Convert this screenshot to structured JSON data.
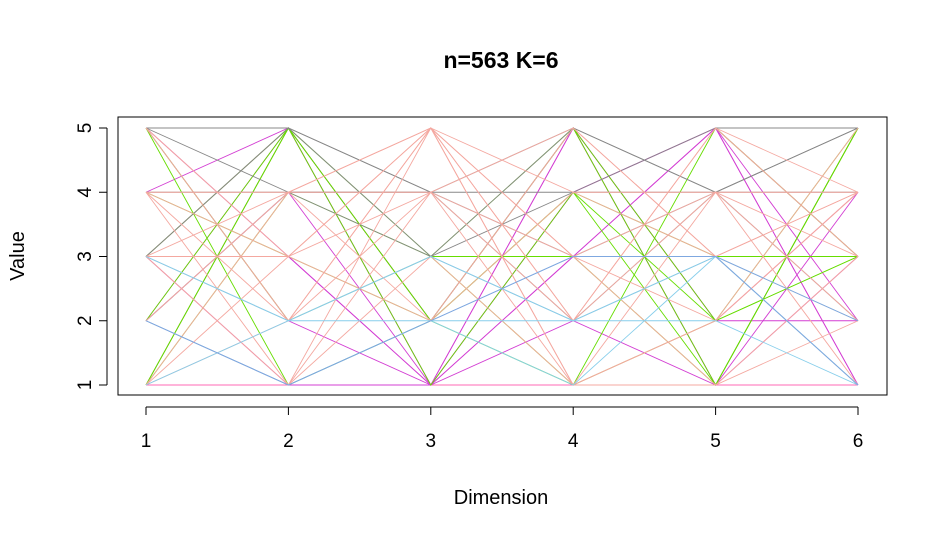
{
  "chart_data": {
    "type": "line",
    "title": "n=563 K=6",
    "xlabel": "Dimension",
    "ylabel": "Value",
    "x": [
      1,
      2,
      3,
      4,
      5,
      6
    ],
    "xticks": [
      "1",
      "2",
      "3",
      "4",
      "5",
      "6"
    ],
    "yticks": [
      "1",
      "2",
      "3",
      "4",
      "5"
    ],
    "xlim": [
      1,
      6
    ],
    "ylim": [
      1,
      5
    ],
    "grid": false,
    "series": [
      {
        "color": "#FF69B4",
        "values": [
          1,
          1,
          1,
          1,
          1,
          1
        ]
      },
      {
        "color": "#D33FD3",
        "values": [
          1,
          5,
          1,
          5,
          1,
          5
        ]
      },
      {
        "color": "#D33FD3",
        "values": [
          3,
          5,
          2,
          5,
          2,
          4
        ]
      },
      {
        "color": "#D33FD3",
        "values": [
          4,
          5,
          1,
          4,
          5,
          2
        ]
      },
      {
        "color": "#D33FD3",
        "values": [
          2,
          4,
          1,
          3,
          5,
          1
        ]
      },
      {
        "color": "#D33FD3",
        "values": [
          3,
          3,
          1,
          2,
          1,
          3
        ]
      },
      {
        "color": "#D33FD3",
        "values": [
          5,
          2,
          1,
          3,
          5,
          3
        ]
      },
      {
        "color": "#D33FD3",
        "values": [
          3,
          1,
          1,
          5,
          2,
          2
        ]
      },
      {
        "color": "#D33FD3",
        "values": [
          2,
          5,
          2,
          5,
          1,
          4
        ]
      },
      {
        "color": "#D33FD3",
        "values": [
          5,
          3,
          1,
          4,
          5,
          1
        ]
      },
      {
        "color": "#66DD00",
        "values": [
          5,
          2,
          3,
          1,
          5,
          3
        ]
      },
      {
        "color": "#66DD00",
        "values": [
          1,
          5,
          2,
          4,
          2,
          5
        ]
      },
      {
        "color": "#66DD00",
        "values": [
          4,
          3,
          2,
          5,
          2,
          3
        ]
      },
      {
        "color": "#66DD00",
        "values": [
          1,
          4,
          3,
          3,
          1,
          5
        ]
      },
      {
        "color": "#66DD00",
        "values": [
          2,
          5,
          1,
          4,
          3,
          3
        ]
      },
      {
        "color": "#66DD00",
        "values": [
          5,
          1,
          2,
          4,
          1,
          5
        ]
      },
      {
        "color": "#66DD00",
        "values": [
          3,
          5,
          2,
          1,
          2,
          3
        ]
      },
      {
        "color": "#66DD00",
        "values": [
          1,
          5,
          3,
          5,
          1,
          5
        ]
      },
      {
        "color": "#888888",
        "values": [
          5,
          4,
          3,
          5,
          4,
          5
        ]
      },
      {
        "color": "#888888",
        "values": [
          5,
          5,
          3,
          4,
          5,
          5
        ]
      },
      {
        "color": "#888888",
        "values": [
          4,
          4,
          4,
          3,
          4,
          5
        ]
      },
      {
        "color": "#888888",
        "values": [
          5,
          5,
          4,
          2,
          4,
          5
        ]
      },
      {
        "color": "#888888",
        "values": [
          3,
          5,
          4,
          5,
          4,
          4
        ]
      },
      {
        "color": "#888888",
        "values": [
          2,
          4,
          4,
          4,
          4,
          2
        ]
      },
      {
        "color": "#F4A8A0",
        "values": [
          1,
          2,
          5,
          1,
          4,
          1
        ]
      },
      {
        "color": "#F4A8A0",
        "values": [
          4,
          3,
          5,
          2,
          4,
          4
        ]
      },
      {
        "color": "#F4A8A0",
        "values": [
          3,
          1,
          5,
          3,
          4,
          2
        ]
      },
      {
        "color": "#F4A8A0",
        "values": [
          2,
          4,
          5,
          1,
          2,
          5
        ]
      },
      {
        "color": "#F4A8A0",
        "values": [
          5,
          2,
          5,
          4,
          3,
          1
        ]
      },
      {
        "color": "#F4A8A0",
        "values": [
          1,
          3,
          4,
          2,
          3,
          4
        ]
      },
      {
        "color": "#F4A8A0",
        "values": [
          4,
          1,
          4,
          1,
          1,
          2
        ]
      },
      {
        "color": "#F4A8A0",
        "values": [
          3,
          2,
          4,
          3,
          1,
          3
        ]
      },
      {
        "color": "#F4A8A0",
        "values": [
          2,
          1,
          3,
          2,
          5,
          4
        ]
      },
      {
        "color": "#F4A8A0",
        "values": [
          4,
          2,
          3,
          1,
          2,
          4
        ]
      },
      {
        "color": "#F4A8A0",
        "values": [
          1,
          4,
          2,
          5,
          3,
          2
        ]
      },
      {
        "color": "#F4A8A0",
        "values": [
          3,
          3,
          2,
          4,
          4,
          3
        ]
      },
      {
        "color": "#F4A8A0",
        "values": [
          4,
          4,
          5,
          2,
          5,
          3
        ]
      },
      {
        "color": "#F4A8A0",
        "values": [
          3,
          4,
          4,
          5,
          3,
          4
        ]
      },
      {
        "color": "#F4A8A0",
        "values": [
          5,
          3,
          5,
          3,
          2,
          4
        ]
      },
      {
        "color": "#87CEEB",
        "values": [
          3,
          2,
          3,
          2,
          3,
          1
        ]
      },
      {
        "color": "#87CEEB",
        "values": [
          2,
          1,
          2,
          2,
          3,
          2
        ]
      },
      {
        "color": "#87CEEB",
        "values": [
          1,
          2,
          2,
          1,
          3,
          1
        ]
      },
      {
        "color": "#87CEEB",
        "values": [
          3,
          2,
          3,
          2,
          2,
          1
        ]
      },
      {
        "color": "#7FA8E0",
        "values": [
          2,
          1,
          2,
          3,
          3,
          2
        ]
      },
      {
        "color": "#7FA8E0",
        "values": [
          2,
          1,
          2,
          3,
          3,
          1
        ]
      }
    ]
  }
}
